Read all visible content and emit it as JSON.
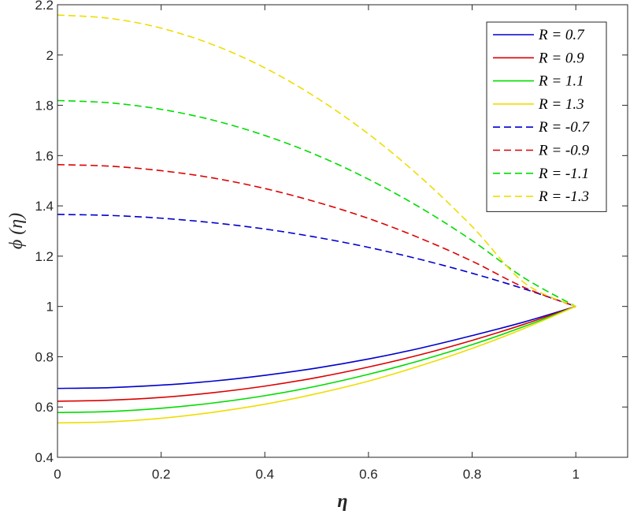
{
  "chart_data": {
    "type": "line",
    "xlabel": "η",
    "ylabel": "ϕ (η)",
    "xlim": [
      0,
      1.1
    ],
    "ylim": [
      0.4,
      2.2
    ],
    "x_ticks": [
      "0",
      "0.2",
      "0.4",
      "0.6",
      "0.8",
      "1"
    ],
    "y_ticks": [
      "0.4",
      "0.6",
      "0.8",
      "1",
      "1.2",
      "1.4",
      "1.6",
      "1.8",
      "2",
      "2.2"
    ],
    "grid": false,
    "legend_position": "top-right",
    "x": [
      0,
      0.1,
      0.2,
      0.3,
      0.4,
      0.5,
      0.6,
      0.7,
      0.8,
      0.9,
      1.0
    ],
    "series": [
      {
        "name": "R = 0.7",
        "color": "#0000CC",
        "dash": "solid",
        "values": [
          0.674,
          0.677,
          0.687,
          0.703,
          0.726,
          0.755,
          0.791,
          0.834,
          0.884,
          0.938,
          1.0
        ]
      },
      {
        "name": "R = 0.9",
        "color": "#DD0000",
        "dash": "solid",
        "values": [
          0.623,
          0.627,
          0.638,
          0.657,
          0.683,
          0.717,
          0.759,
          0.808,
          0.865,
          0.929,
          1.0
        ]
      },
      {
        "name": "R = 1.1",
        "color": "#00DD00",
        "dash": "solid",
        "values": [
          0.578,
          0.582,
          0.595,
          0.616,
          0.645,
          0.683,
          0.73,
          0.785,
          0.848,
          0.92,
          1.0
        ]
      },
      {
        "name": "R = 1.3",
        "color": "#EEDD00",
        "dash": "solid",
        "values": [
          0.537,
          0.541,
          0.555,
          0.579,
          0.611,
          0.653,
          0.703,
          0.764,
          0.833,
          0.912,
          1.0
        ]
      },
      {
        "name": "R = -0.7",
        "color": "#0000CC",
        "dash": "dashed",
        "values": [
          1.366,
          1.362,
          1.351,
          1.333,
          1.308,
          1.275,
          1.235,
          1.187,
          1.132,
          1.07,
          1.0
        ]
      },
      {
        "name": "R = -0.9",
        "color": "#DD0000",
        "dash": "dashed",
        "values": [
          1.564,
          1.558,
          1.54,
          1.511,
          1.469,
          1.415,
          1.35,
          1.271,
          1.18,
          1.076,
          1.0
        ]
      },
      {
        "name": "R = -1.1",
        "color": "#00DD00",
        "dash": "dashed",
        "values": [
          1.819,
          1.81,
          1.784,
          1.741,
          1.68,
          1.602,
          1.506,
          1.393,
          1.262,
          1.114,
          1.0
        ]
      },
      {
        "name": "R = -1.3",
        "color": "#EEDD00",
        "dash": "dashed",
        "values": [
          2.159,
          2.146,
          2.107,
          2.041,
          1.949,
          1.83,
          1.686,
          1.515,
          1.318,
          1.095,
          1.0
        ]
      }
    ]
  }
}
